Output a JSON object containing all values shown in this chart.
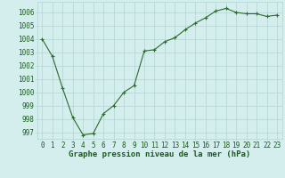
{
  "x": [
    0,
    1,
    2,
    3,
    4,
    5,
    6,
    7,
    8,
    9,
    10,
    11,
    12,
    13,
    14,
    15,
    16,
    17,
    18,
    19,
    20,
    21,
    22,
    23
  ],
  "y": [
    1004.0,
    1002.7,
    1000.3,
    998.1,
    996.8,
    996.9,
    998.4,
    999.0,
    1000.0,
    1000.5,
    1003.1,
    1003.2,
    1003.8,
    1004.1,
    1004.7,
    1005.2,
    1005.6,
    1006.1,
    1006.3,
    1006.0,
    1005.9,
    1005.9,
    1005.7,
    1005.8
  ],
  "line_color": "#2d6a2d",
  "marker": "+",
  "marker_size": 3.5,
  "bg_color": "#d4eeee",
  "grid_color": "#b8d8d8",
  "xlabel": "Graphe pression niveau de la mer (hPa)",
  "xlabel_color": "#1a5c1a",
  "xlabel_fontsize": 6.5,
  "tick_color": "#1a5c1a",
  "tick_fontsize": 5.5,
  "ylim": [
    996.5,
    1006.8
  ],
  "yticks": [
    997,
    998,
    999,
    1000,
    1001,
    1002,
    1003,
    1004,
    1005,
    1006
  ],
  "xlim": [
    -0.5,
    23.5
  ],
  "xticks": [
    0,
    1,
    2,
    3,
    4,
    5,
    6,
    7,
    8,
    9,
    10,
    11,
    12,
    13,
    14,
    15,
    16,
    17,
    18,
    19,
    20,
    21,
    22,
    23
  ]
}
